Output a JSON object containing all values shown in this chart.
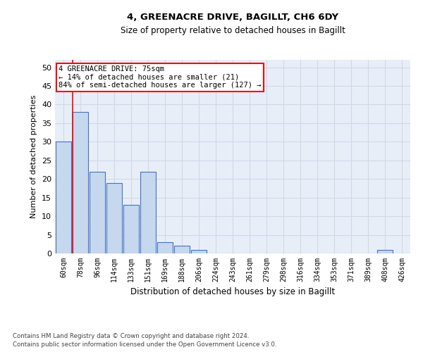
{
  "title1": "4, GREENACRE DRIVE, BAGILLT, CH6 6DY",
  "title2": "Size of property relative to detached houses in Bagillt",
  "xlabel": "Distribution of detached houses by size in Bagillt",
  "ylabel": "Number of detached properties",
  "bar_labels": [
    "60sqm",
    "78sqm",
    "96sqm",
    "114sqm",
    "133sqm",
    "151sqm",
    "169sqm",
    "188sqm",
    "206sqm",
    "224sqm",
    "243sqm",
    "261sqm",
    "279sqm",
    "298sqm",
    "316sqm",
    "334sqm",
    "353sqm",
    "371sqm",
    "389sqm",
    "408sqm",
    "426sqm"
  ],
  "bar_values": [
    30,
    38,
    22,
    19,
    13,
    22,
    3,
    2,
    1,
    0,
    0,
    0,
    0,
    0,
    0,
    0,
    0,
    0,
    0,
    1,
    0
  ],
  "bar_color": "#c5d8ed",
  "bar_edge_color": "#4472c4",
  "ylim": [
    0,
    52
  ],
  "yticks": [
    0,
    5,
    10,
    15,
    20,
    25,
    30,
    35,
    40,
    45,
    50
  ],
  "grid_color": "#d0d8e8",
  "bg_color": "#e8eef8",
  "red_line_x": 0.525,
  "annotation_text": "4 GREENACRE DRIVE: 75sqm\n← 14% of detached houses are smaller (21)\n84% of semi-detached houses are larger (127) →",
  "footer1": "Contains HM Land Registry data © Crown copyright and database right 2024.",
  "footer2": "Contains public sector information licensed under the Open Government Licence v3.0."
}
